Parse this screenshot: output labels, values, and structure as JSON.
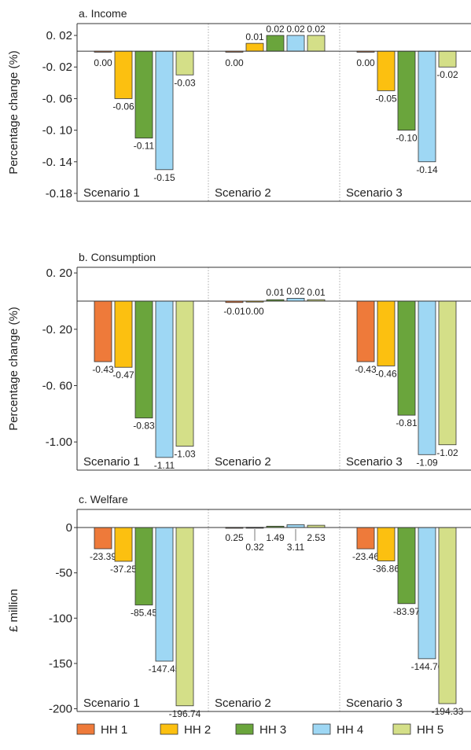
{
  "chart_data": [
    {
      "type": "bar",
      "title": "a. Income",
      "ylabel": "Percentage change (%)",
      "ylim": [
        -0.19,
        0.035
      ],
      "ticks": [
        0.02,
        -0.02,
        -0.06,
        -0.1,
        -0.14,
        -0.18
      ],
      "tick_labels": [
        "0. 02",
        "-0. 02",
        "-0. 06",
        "-0. 10",
        "-0. 14",
        "-0.18"
      ],
      "categories": [
        "Scenario 1",
        "Scenario 2",
        "Scenario 3"
      ],
      "series": [
        {
          "name": "HH 1",
          "values": [
            0.0,
            0.0,
            0.0
          ]
        },
        {
          "name": "HH 2",
          "values": [
            -0.06,
            0.01,
            -0.05
          ]
        },
        {
          "name": "HH 3",
          "values": [
            -0.11,
            0.02,
            -0.1
          ]
        },
        {
          "name": "HH 4",
          "values": [
            -0.15,
            0.02,
            -0.14
          ]
        },
        {
          "name": "HH 5",
          "values": [
            -0.03,
            0.02,
            -0.02
          ]
        }
      ],
      "data_labels": [
        [
          "0.00",
          "-0.06",
          "-0.11",
          "-0.15",
          "-0.03"
        ],
        [
          "0.00",
          "0.01",
          "0.02",
          "0.02",
          "0.02"
        ],
        [
          "0.00",
          "-0.05",
          "-0.10",
          "-0.14",
          "-0.02"
        ]
      ]
    },
    {
      "type": "bar",
      "title": "b. Consumption",
      "ylabel": "Percentage change (%)",
      "ylim": [
        -1.2,
        0.24
      ],
      "ticks": [
        0.2,
        -0.2,
        -0.6,
        -1.0
      ],
      "tick_labels": [
        "0. 20",
        "-0. 20",
        "-0. 60",
        "-1.00"
      ],
      "categories": [
        "Scenario 1",
        "Scenario 2",
        "Scenario 3"
      ],
      "series": [
        {
          "name": "HH 1",
          "values": [
            -0.43,
            -0.01,
            -0.43
          ]
        },
        {
          "name": "HH 2",
          "values": [
            -0.47,
            0.0,
            -0.46
          ]
        },
        {
          "name": "HH 3",
          "values": [
            -0.83,
            0.01,
            -0.81
          ]
        },
        {
          "name": "HH 4",
          "values": [
            -1.11,
            0.02,
            -1.09
          ]
        },
        {
          "name": "HH 5",
          "values": [
            -1.03,
            0.01,
            -1.02
          ]
        }
      ],
      "data_labels": [
        [
          "-0.43",
          "-0.47",
          "-0.83",
          "-1.11",
          "-1.03"
        ],
        [
          "-0.01",
          "0.00",
          "0.01",
          "0.02",
          "0.01"
        ],
        [
          "-0.43",
          "-0.46",
          "-0.81",
          "-1.09",
          "-1.02"
        ]
      ]
    },
    {
      "type": "bar",
      "title": "c. Welfare",
      "ylabel": "£ million",
      "ylim": [
        -203,
        20
      ],
      "ticks": [
        0,
        -50,
        -100,
        -150,
        -200
      ],
      "tick_labels": [
        "0",
        "-50",
        "-100",
        "-150",
        "-200"
      ],
      "categories": [
        "Scenario 1",
        "Scenario 2",
        "Scenario 3"
      ],
      "series": [
        {
          "name": "HH 1",
          "values": [
            -23.39,
            0.25,
            -23.46
          ]
        },
        {
          "name": "HH 2",
          "values": [
            -37.25,
            0.32,
            -36.86
          ]
        },
        {
          "name": "HH 3",
          "values": [
            -85.45,
            1.49,
            -83.97
          ]
        },
        {
          "name": "HH 4",
          "values": [
            -147.45,
            3.11,
            -144.76
          ]
        },
        {
          "name": "HH 5",
          "values": [
            -196.74,
            2.53,
            -194.33
          ]
        }
      ],
      "data_labels": [
        [
          "-23.39",
          "-37.25",
          "-85.45",
          "-147.45",
          "-196.74"
        ],
        [
          "0.25",
          "0.32",
          "1.49",
          "3.11",
          "2.53"
        ],
        [
          "-23.46",
          "-36.86",
          "-83.97",
          "-144.76",
          "-194.33"
        ]
      ]
    }
  ],
  "legend": {
    "placement": "bottom",
    "items": [
      {
        "label": "HH 1",
        "color": "#ee7a3a"
      },
      {
        "label": "HH 2",
        "color": "#fcc010"
      },
      {
        "label": "HH 3",
        "color": "#6aa53c"
      },
      {
        "label": "HH 4",
        "color": "#9ed7f4"
      },
      {
        "label": "HH 5",
        "color": "#d4df88"
      }
    ]
  }
}
